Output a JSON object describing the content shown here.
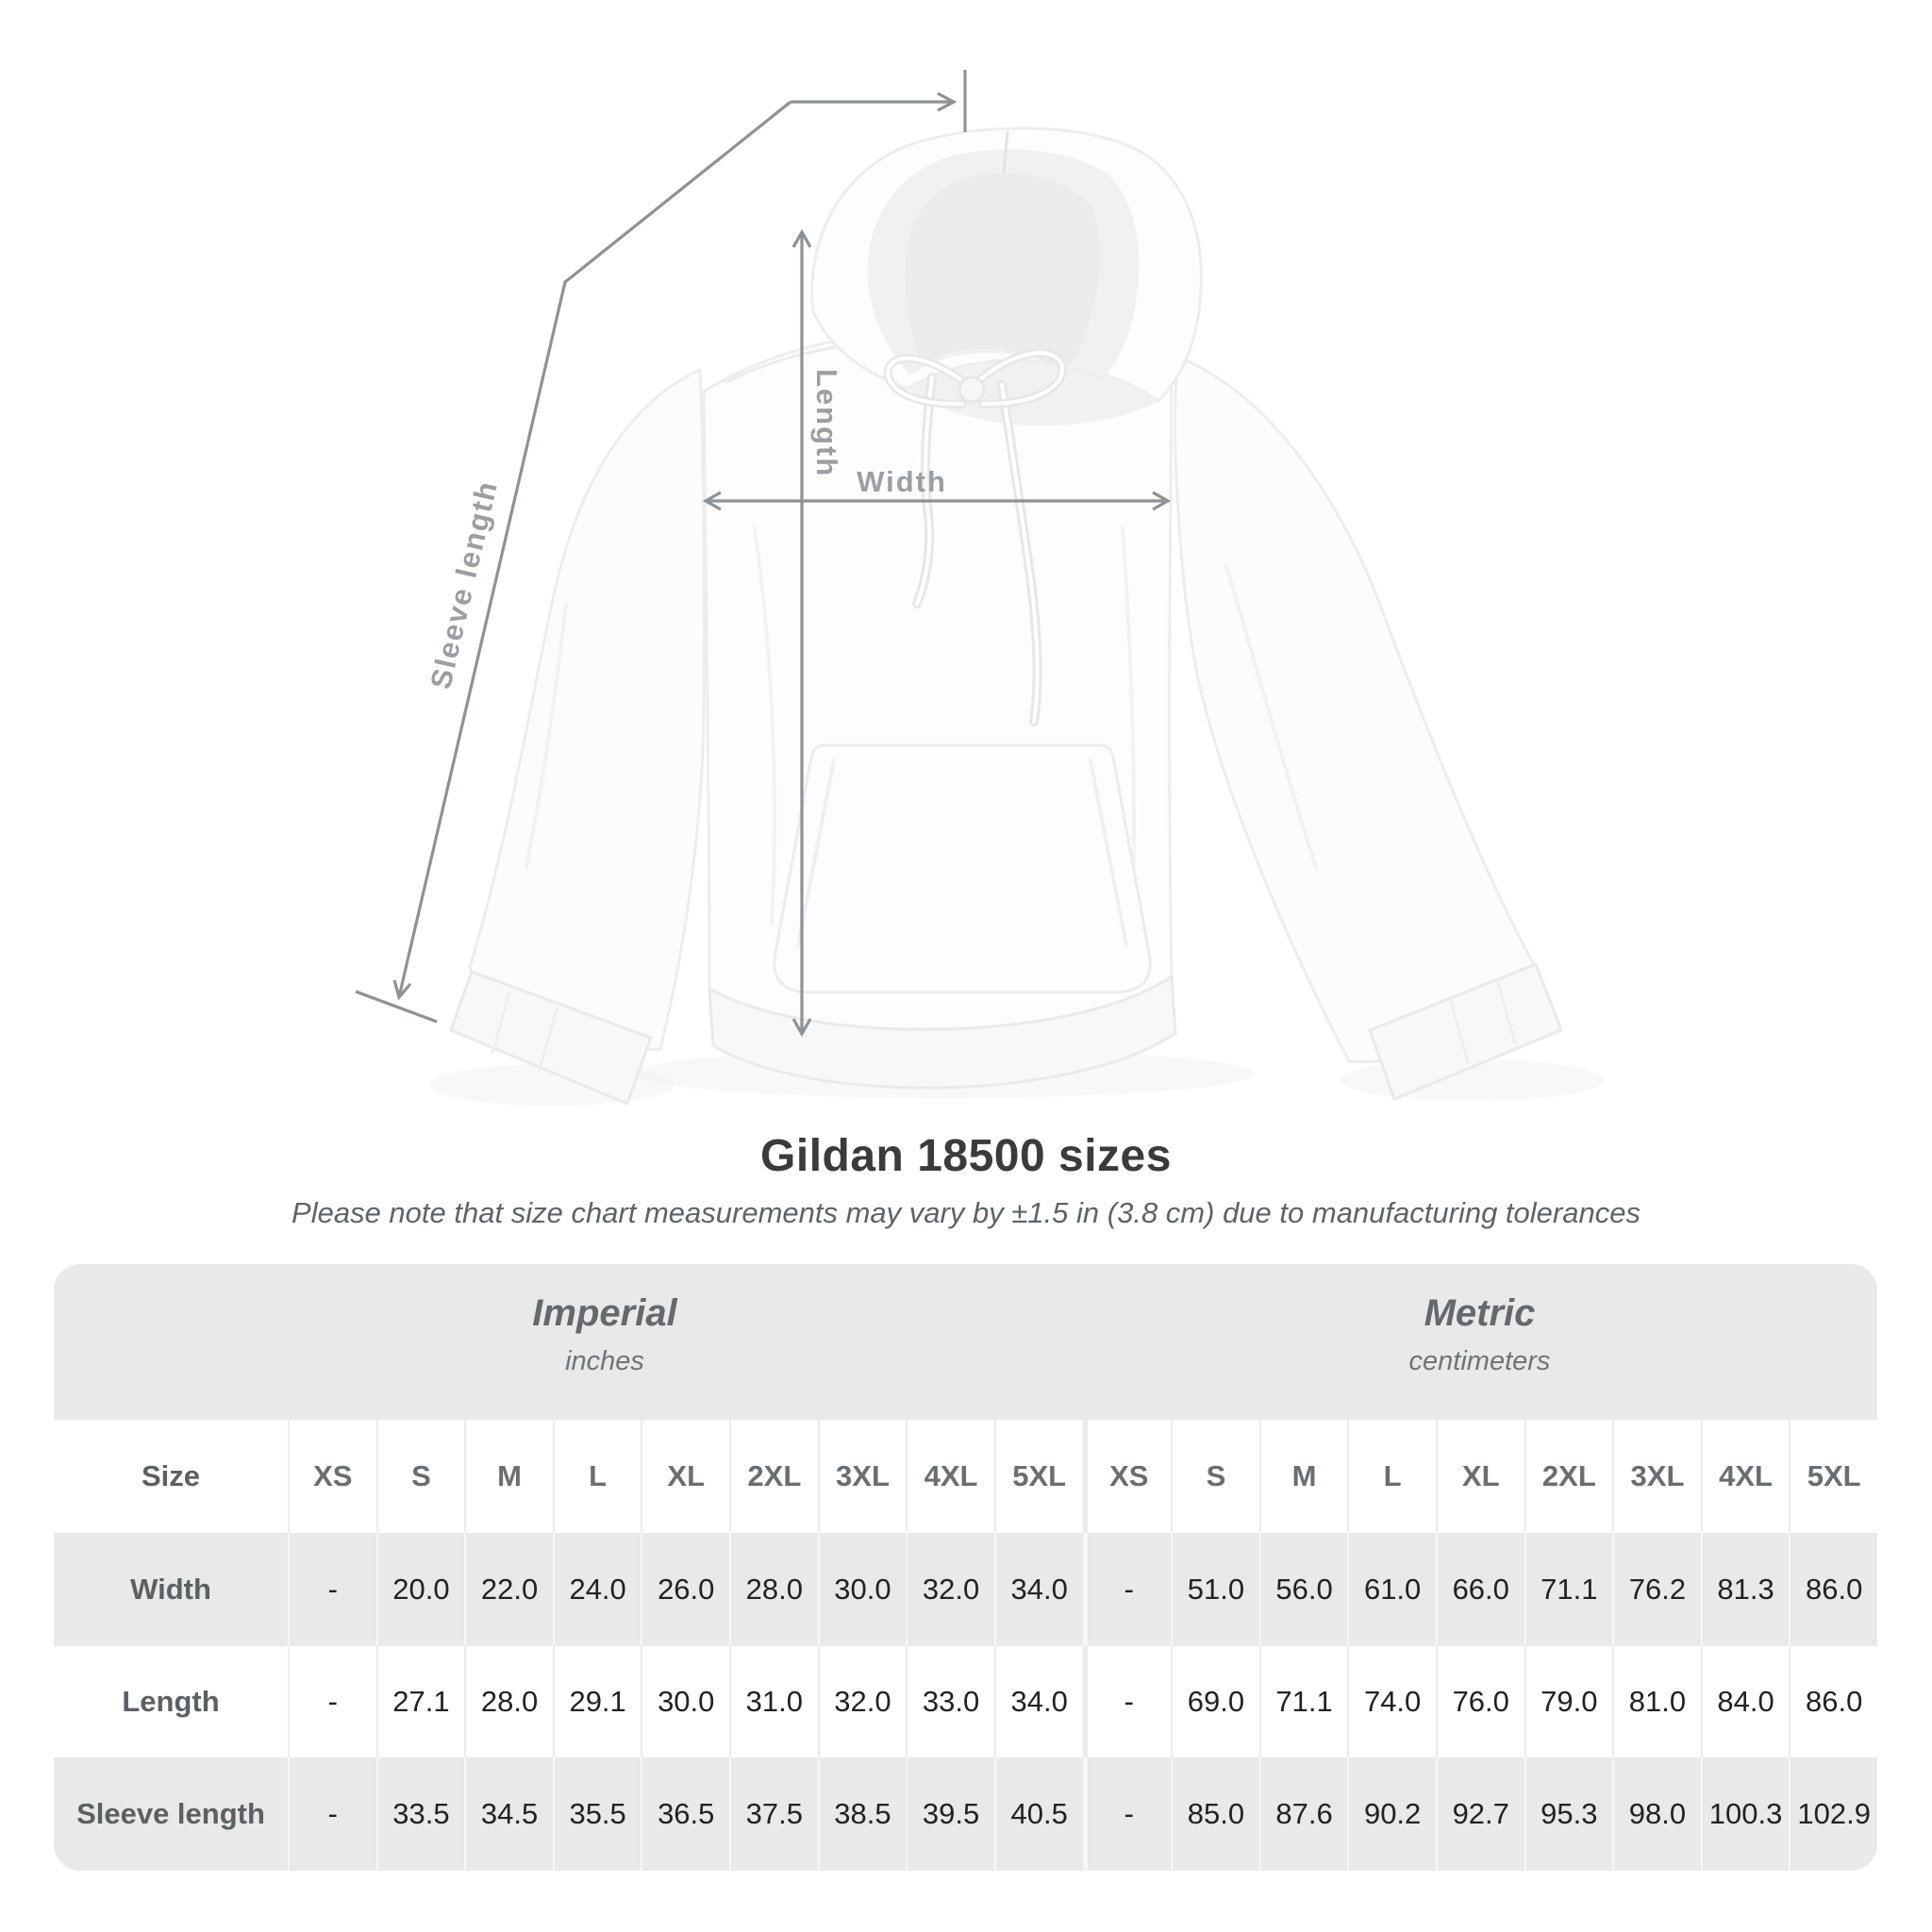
{
  "diagram": {
    "labels": {
      "sleeve": "Sleeve length",
      "length": "Length",
      "width": "Width"
    },
    "line_color": "#8d9296",
    "label_color": "#9b9fa3"
  },
  "heading": {
    "title": "Gildan 18500 sizes",
    "subtitle": "Please note that size chart measurements may vary by ±1.5 in (3.8 cm) due to manufacturing tolerances"
  },
  "size_table": {
    "groups": [
      {
        "title": "Imperial",
        "subtitle": "inches"
      },
      {
        "title": "Metric",
        "subtitle": "centimeters"
      }
    ],
    "size_col_label": "Size",
    "sizes": [
      "XS",
      "S",
      "M",
      "L",
      "XL",
      "2XL",
      "3XL",
      "4XL",
      "5XL"
    ],
    "rows": [
      {
        "label": "Width",
        "imperial": [
          "-",
          "20.0",
          "22.0",
          "24.0",
          "26.0",
          "28.0",
          "30.0",
          "32.0",
          "34.0"
        ],
        "metric": [
          "-",
          "51.0",
          "56.0",
          "61.0",
          "66.0",
          "71.1",
          "76.2",
          "81.3",
          "86.0"
        ]
      },
      {
        "label": "Length",
        "imperial": [
          "-",
          "27.1",
          "28.0",
          "29.1",
          "30.0",
          "31.0",
          "32.0",
          "33.0",
          "34.0"
        ],
        "metric": [
          "-",
          "69.0",
          "71.1",
          "74.0",
          "76.0",
          "79.0",
          "81.0",
          "84.0",
          "86.0"
        ]
      },
      {
        "label": "Sleeve length",
        "imperial": [
          "-",
          "33.5",
          "34.5",
          "35.5",
          "36.5",
          "37.5",
          "38.5",
          "39.5",
          "40.5"
        ],
        "metric": [
          "-",
          "85.0",
          "87.6",
          "90.2",
          "92.7",
          "95.3",
          "98.0",
          "100.3",
          "102.9"
        ]
      }
    ],
    "colors": {
      "band": "#e9e9e9",
      "row": "#ffffff",
      "row_alt": "#e9e9e9",
      "header_text": "#686e72",
      "label_text": "#5a6064",
      "value_text": "#222222"
    }
  }
}
